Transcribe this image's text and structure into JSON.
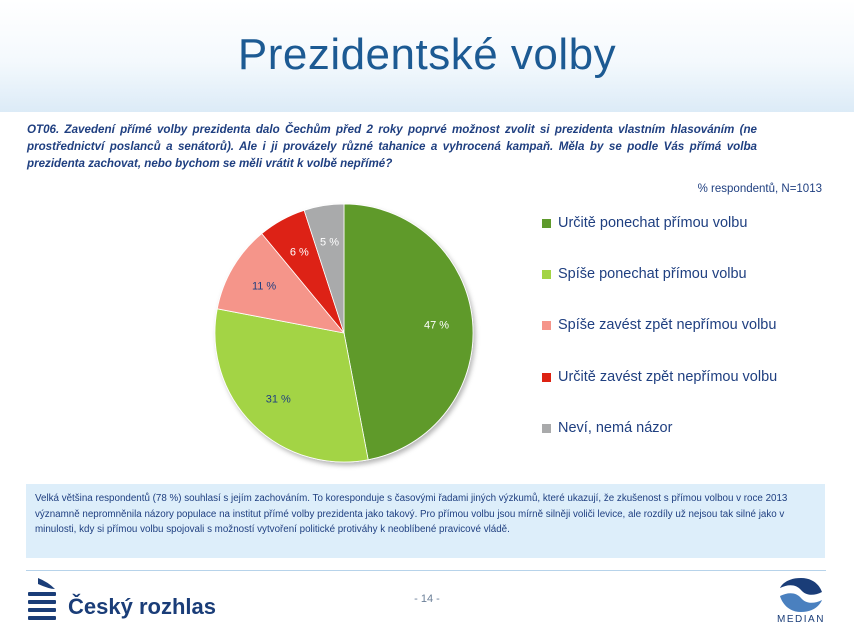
{
  "title": "Prezidentské volby",
  "question": "OT06. Zavedení přímé volby prezidenta dalo Čechům před 2 roky poprvé možnost zvolit si prezidenta vlastním hlasováním (ne prostřednictví poslanců a senátorů). Ale i ji provázely různé tahanice a vyhrocená kampaň. Měla by se podle Vás přímá volba prezidenta zachovat, nebo bychom se měli vrátit k volbě nepřímé?",
  "respondents_note": "% respondentů, N=1013",
  "chart_data": {
    "type": "pie",
    "slices": [
      {
        "label": "Určitě ponechat přímou volbu",
        "value": 47,
        "data_label": "47 %",
        "color": "#5e9a2c"
      },
      {
        "label": "Spíše ponechat přímou volbu",
        "value": 31,
        "data_label": "31 %",
        "color": "#a3d444"
      },
      {
        "label": "Spíše zavést zpět nepřímou volbu",
        "value": 11,
        "data_label": "11 %",
        "color": "#f5958a"
      },
      {
        "label": "Určitě zavést zpět nepřímou volbu",
        "value": 6,
        "data_label": "6 %",
        "color": "#dd2212"
      },
      {
        "label": "Neví, nemá názor",
        "value": 5,
        "data_label": "5 %",
        "color": "#a9aaab"
      }
    ],
    "start": "top",
    "direction": "clockwise",
    "legend_position": "right"
  },
  "summary": "Velká většina respondentů (78 %) souhlasí s jejím zachováním. To koresponduje s časovými řadami jiných výzkumů, které ukazují, že zkušenost s přímou volbou v roce 2013 významně nepromněnila názory populace na institut přímé volby prezidenta jako takový. Pro přímou volbu jsou mírně silněji voliči levice, ale rozdíly už nejsou tak silné jako v minulosti, kdy si přímou volbu spojovali s možností vytvoření politické protiváhy k neoblíbené pravicové vládě.",
  "footer": {
    "page_number": "- 14 -",
    "logo_left_text": "Český rozhlas",
    "logo_right_text": "MEDIAN"
  },
  "colors": {
    "title": "#1c5a93",
    "text": "#1f3f80",
    "summary_bg": "#ddeefa"
  }
}
